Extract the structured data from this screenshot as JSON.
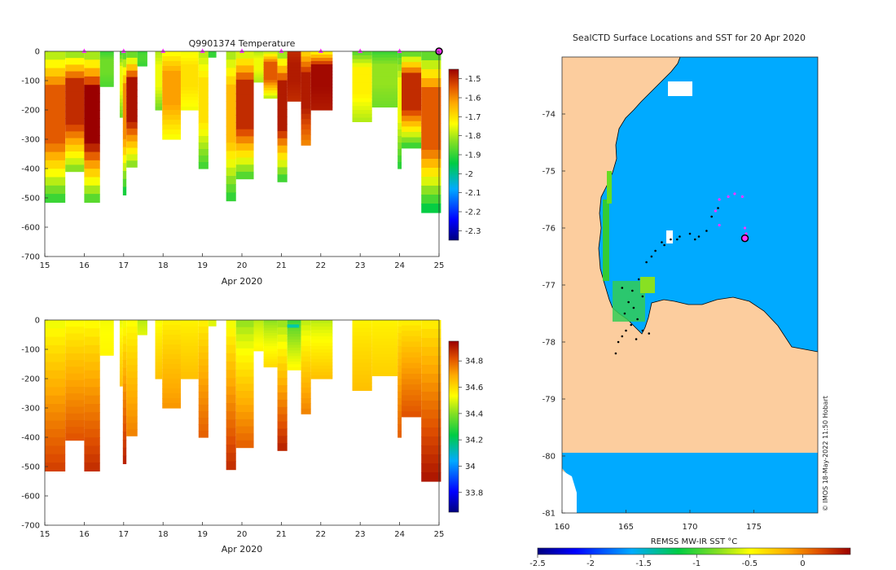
{
  "chart_data": [
    {
      "type": "heatmap",
      "panel": "temperature-profiles",
      "title": "Q9901374  Temperature",
      "xlabel": "Apr 2020",
      "ylabel": "",
      "xlim": [
        15,
        25
      ],
      "ylim": [
        -700,
        0
      ],
      "xticks": [
        "15",
        "16",
        "17",
        "18",
        "19",
        "20",
        "21",
        "22",
        "23",
        "24",
        "25"
      ],
      "yticks": [
        "0",
        "-100",
        "-200",
        "-300",
        "-400",
        "-500",
        "-600",
        "-700"
      ],
      "colorbar": {
        "label": "",
        "range": [
          -2.35,
          -1.45
        ],
        "ticks": [
          "-1.5",
          "-1.6",
          "-1.7",
          "-1.8",
          "-1.9",
          "-2",
          "-2.1",
          "-2.2",
          "-2.3"
        ]
      },
      "surface_markers_x": [
        16,
        17,
        18,
        19,
        20,
        21,
        22,
        23,
        24
      ],
      "current_marker_x": 25,
      "profiles": [
        {
          "x0": 15.0,
          "x1": 15.52,
          "depth": 515,
          "t_surf": -1.82,
          "t_core": -1.55,
          "t_deep": -1.92
        },
        {
          "x0": 15.52,
          "x1": 16.0,
          "depth": 410,
          "t_surf": -1.85,
          "t_core": -1.5,
          "t_deep": -1.85
        },
        {
          "x0": 16.0,
          "x1": 16.4,
          "depth": 515,
          "t_surf": -1.85,
          "t_core": -1.45,
          "t_deep": -1.9
        },
        {
          "x0": 16.4,
          "x1": 16.75,
          "depth": 120,
          "t_surf": -1.9,
          "t_core": -1.85,
          "t_deep": -1.88
        },
        {
          "x0": 16.9,
          "x1": 16.98,
          "depth": 225,
          "t_surf": -1.9,
          "t_core": -1.75,
          "t_deep": -1.85
        },
        {
          "x0": 16.98,
          "x1": 17.07,
          "depth": 490,
          "t_surf": -1.9,
          "t_core": -1.6,
          "t_deep": -1.95
        },
        {
          "x0": 17.07,
          "x1": 17.35,
          "depth": 395,
          "t_surf": -1.9,
          "t_core": -1.47,
          "t_deep": -1.85
        },
        {
          "x0": 17.35,
          "x1": 17.6,
          "depth": 50,
          "t_surf": -1.9,
          "t_core": -1.88,
          "t_deep": -1.9
        },
        {
          "x0": 17.8,
          "x1": 17.98,
          "depth": 200,
          "t_surf": -1.8,
          "t_core": -1.75,
          "t_deep": -1.85
        },
        {
          "x0": 17.98,
          "x1": 18.45,
          "depth": 300,
          "t_surf": -1.75,
          "t_core": -1.62,
          "t_deep": -1.75
        },
        {
          "x0": 18.45,
          "x1": 18.9,
          "depth": 200,
          "t_surf": -1.75,
          "t_core": -1.7,
          "t_deep": -1.75
        },
        {
          "x0": 18.9,
          "x1": 19.15,
          "depth": 400,
          "t_surf": -1.8,
          "t_core": -1.7,
          "t_deep": -1.9
        },
        {
          "x0": 19.15,
          "x1": 19.35,
          "depth": 20,
          "t_surf": -1.9,
          "t_core": -1.9,
          "t_deep": -1.9
        },
        {
          "x0": 19.6,
          "x1": 19.85,
          "depth": 510,
          "t_surf": -1.82,
          "t_core": -1.65,
          "t_deep": -1.92
        },
        {
          "x0": 19.85,
          "x1": 20.3,
          "depth": 435,
          "t_surf": -1.8,
          "t_core": -1.5,
          "t_deep": -1.9
        },
        {
          "x0": 20.3,
          "x1": 20.55,
          "depth": 105,
          "t_surf": -1.8,
          "t_core": -1.75,
          "t_deep": -1.8
        },
        {
          "x0": 20.55,
          "x1": 20.9,
          "depth": 160,
          "t_surf": -1.8,
          "t_core": -1.55,
          "t_deep": -1.8
        },
        {
          "x0": 20.9,
          "x1": 21.15,
          "depth": 445,
          "t_surf": -1.85,
          "t_core": -1.48,
          "t_deep": -1.92
        },
        {
          "x0": 21.15,
          "x1": 21.5,
          "depth": 170,
          "t_surf": -1.5,
          "t_core": -1.48,
          "t_deep": -1.5
        },
        {
          "x0": 21.5,
          "x1": 21.75,
          "depth": 320,
          "t_surf": -1.7,
          "t_core": -1.48,
          "t_deep": -1.6
        },
        {
          "x0": 21.75,
          "x1": 22.3,
          "depth": 200,
          "t_surf": -1.75,
          "t_core": -1.46,
          "t_deep": -1.48
        },
        {
          "x0": 22.8,
          "x1": 23.3,
          "depth": 240,
          "t_surf": -1.88,
          "t_core": -1.72,
          "t_deep": -1.8
        },
        {
          "x0": 23.3,
          "x1": 23.95,
          "depth": 190,
          "t_surf": -1.9,
          "t_core": -1.82,
          "t_deep": -1.85
        },
        {
          "x0": 23.95,
          "x1": 24.05,
          "depth": 400,
          "t_surf": -1.9,
          "t_core": -1.75,
          "t_deep": -1.92
        },
        {
          "x0": 24.05,
          "x1": 24.55,
          "depth": 330,
          "t_surf": -1.9,
          "t_core": -1.5,
          "t_deep": -1.92
        },
        {
          "x0": 24.55,
          "x1": 25.05,
          "depth": 550,
          "t_surf": -1.9,
          "t_core": -1.55,
          "t_deep": -1.97
        }
      ]
    },
    {
      "type": "heatmap",
      "panel": "salinity-profiles",
      "title": "",
      "xlabel": "Apr 2020",
      "ylabel": "",
      "xlim": [
        15,
        25
      ],
      "ylim": [
        -700,
        0
      ],
      "xticks": [
        "15",
        "16",
        "17",
        "18",
        "19",
        "20",
        "21",
        "22",
        "23",
        "24",
        "25"
      ],
      "yticks": [
        "0",
        "-100",
        "-200",
        "-300",
        "-400",
        "-500",
        "-600",
        "-700"
      ],
      "colorbar": {
        "label": "",
        "range": [
          33.65,
          34.95
        ],
        "ticks": [
          "34.8",
          "34.6",
          "34.4",
          "34.2",
          "34",
          "33.8"
        ]
      },
      "profiles": [
        {
          "x0": 15.0,
          "x1": 15.52,
          "depth": 515,
          "s_surf": 34.5,
          "s_deep": 34.85
        },
        {
          "x0": 15.52,
          "x1": 16.0,
          "depth": 410,
          "s_surf": 34.52,
          "s_deep": 34.82
        },
        {
          "x0": 16.0,
          "x1": 16.4,
          "depth": 515,
          "s_surf": 34.52,
          "s_deep": 34.88
        },
        {
          "x0": 16.4,
          "x1": 16.75,
          "depth": 120,
          "s_surf": 34.52,
          "s_deep": 34.55
        },
        {
          "x0": 16.9,
          "x1": 16.98,
          "depth": 225,
          "s_surf": 34.5,
          "s_deep": 34.65
        },
        {
          "x0": 16.98,
          "x1": 17.07,
          "depth": 490,
          "s_surf": 34.5,
          "s_deep": 34.9
        },
        {
          "x0": 17.07,
          "x1": 17.35,
          "depth": 395,
          "s_surf": 34.52,
          "s_deep": 34.75
        },
        {
          "x0": 17.35,
          "x1": 17.6,
          "depth": 50,
          "s_surf": 34.45,
          "s_deep": 34.5
        },
        {
          "x0": 17.8,
          "x1": 17.98,
          "depth": 200,
          "s_surf": 34.52,
          "s_deep": 34.65
        },
        {
          "x0": 17.98,
          "x1": 18.45,
          "depth": 300,
          "s_surf": 34.55,
          "s_deep": 34.72
        },
        {
          "x0": 18.45,
          "x1": 18.9,
          "depth": 200,
          "s_surf": 34.55,
          "s_deep": 34.65
        },
        {
          "x0": 18.9,
          "x1": 19.15,
          "depth": 400,
          "s_surf": 34.55,
          "s_deep": 34.8
        },
        {
          "x0": 19.15,
          "x1": 19.35,
          "depth": 20,
          "s_surf": 34.5,
          "s_deep": 34.5
        },
        {
          "x0": 19.6,
          "x1": 19.85,
          "depth": 510,
          "s_surf": 34.5,
          "s_deep": 34.88
        },
        {
          "x0": 19.85,
          "x1": 20.3,
          "depth": 435,
          "s_surf": 34.4,
          "s_deep": 34.8
        },
        {
          "x0": 20.3,
          "x1": 20.55,
          "depth": 105,
          "s_surf": 34.45,
          "s_deep": 34.55
        },
        {
          "x0": 20.55,
          "x1": 20.9,
          "depth": 160,
          "s_surf": 34.4,
          "s_deep": 34.6
        },
        {
          "x0": 20.9,
          "x1": 21.15,
          "depth": 445,
          "s_surf": 34.4,
          "s_deep": 34.9
        },
        {
          "x0": 21.15,
          "x1": 21.5,
          "depth": 170,
          "s_surf": 34.3,
          "s_deep": 34.55
        },
        {
          "x0": 21.5,
          "x1": 21.75,
          "depth": 320,
          "s_surf": 34.45,
          "s_deep": 34.75
        },
        {
          "x0": 21.75,
          "x1": 22.3,
          "depth": 200,
          "s_surf": 34.45,
          "s_deep": 34.65
        },
        {
          "x0": 22.8,
          "x1": 23.3,
          "depth": 240,
          "s_surf": 34.55,
          "s_deep": 34.65
        },
        {
          "x0": 23.3,
          "x1": 23.95,
          "depth": 190,
          "s_surf": 34.55,
          "s_deep": 34.62
        },
        {
          "x0": 23.95,
          "x1": 24.05,
          "depth": 400,
          "s_surf": 34.55,
          "s_deep": 34.8
        },
        {
          "x0": 24.05,
          "x1": 24.55,
          "depth": 330,
          "s_surf": 34.55,
          "s_deep": 34.82
        },
        {
          "x0": 24.55,
          "x1": 25.05,
          "depth": 550,
          "s_surf": 34.55,
          "s_deep": 34.92
        }
      ]
    },
    {
      "type": "map",
      "panel": "surface-locations-sst",
      "title": "SealCTD Surface Locations and SST for 20 Apr 2020",
      "xlim": [
        160,
        180
      ],
      "ylim": [
        -81,
        -73
      ],
      "xticks": [
        "160",
        "165",
        "170",
        "175"
      ],
      "yticks": [
        "-74",
        "-75",
        "-76",
        "-77",
        "-78",
        "-79",
        "-80",
        "-81"
      ],
      "colorbar": {
        "label": "REMSS MW-IR SST °C",
        "range": [
          -2.5,
          0.45
        ],
        "ticks": [
          "-2.5",
          "-2",
          "-1.5",
          "-1",
          "-0.5",
          "0"
        ]
      },
      "track_points": [
        [
          164.2,
          -78.2
        ],
        [
          164.4,
          -78.0
        ],
        [
          164.7,
          -77.9
        ],
        [
          165.0,
          -77.8
        ],
        [
          165.4,
          -77.7
        ],
        [
          165.9,
          -77.6
        ],
        [
          166.3,
          -77.8
        ],
        [
          166.8,
          -77.85
        ],
        [
          165.6,
          -77.4
        ],
        [
          165.5,
          -77.1
        ],
        [
          166.0,
          -76.9
        ],
        [
          166.6,
          -76.6
        ],
        [
          167.3,
          -76.4
        ],
        [
          167.8,
          -76.25
        ],
        [
          168.5,
          -76.2
        ],
        [
          169.2,
          -76.15
        ],
        [
          170.0,
          -76.1
        ],
        [
          170.7,
          -76.15
        ],
        [
          171.3,
          -76.05
        ],
        [
          171.7,
          -75.8
        ],
        [
          172.2,
          -75.65
        ],
        [
          165.2,
          -77.3
        ],
        [
          164.7,
          -77.05
        ],
        [
          166.3,
          -77.2
        ],
        [
          167.0,
          -76.5
        ],
        [
          168.0,
          -76.3
        ],
        [
          169.0,
          -76.2
        ],
        [
          170.4,
          -76.2
        ],
        [
          165.8,
          -77.95
        ],
        [
          164.9,
          -77.5
        ]
      ],
      "recent_points": [
        [
          172.3,
          -75.5
        ],
        [
          173.0,
          -75.45
        ],
        [
          173.5,
          -75.4
        ],
        [
          174.1,
          -75.45
        ],
        [
          172.0,
          -75.7
        ],
        [
          172.3,
          -75.95
        ],
        [
          174.3,
          -76.0
        ],
        [
          174.4,
          -76.1
        ]
      ],
      "current_position": [
        174.3,
        -76.18
      ],
      "credit": "© IMOS 18-May-2022 11:50 Hobart"
    }
  ],
  "colors": {
    "land": "#fccd9e",
    "ocean": "#00aaff",
    "marker": "#ff33ff"
  }
}
